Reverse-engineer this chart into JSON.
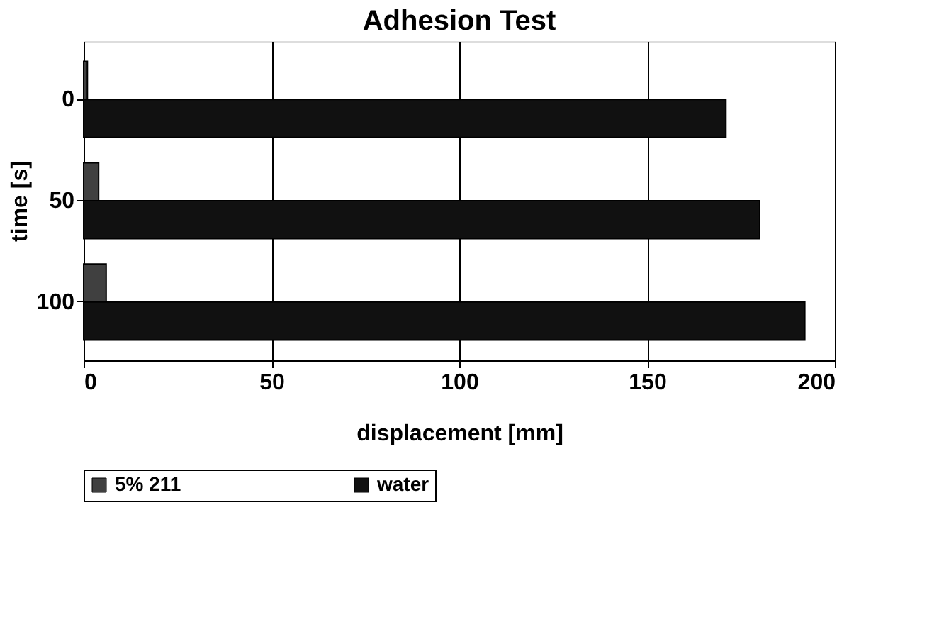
{
  "chart_data": {
    "type": "bar",
    "orientation": "horizontal",
    "title": "Adhesion Test",
    "xlabel": "displacement [mm]",
    "ylabel": "time [s]",
    "categories": [
      "0",
      "50",
      "100"
    ],
    "series": [
      {
        "name": "5% 211",
        "color": "#404040",
        "values": [
          1,
          4,
          6
        ]
      },
      {
        "name": "water",
        "color": "#111111",
        "values": [
          171,
          180,
          192
        ]
      }
    ],
    "xlim": [
      0,
      200
    ],
    "xticks": [
      0,
      50,
      100,
      150,
      200
    ],
    "grid": "x",
    "legend": "bottom"
  }
}
